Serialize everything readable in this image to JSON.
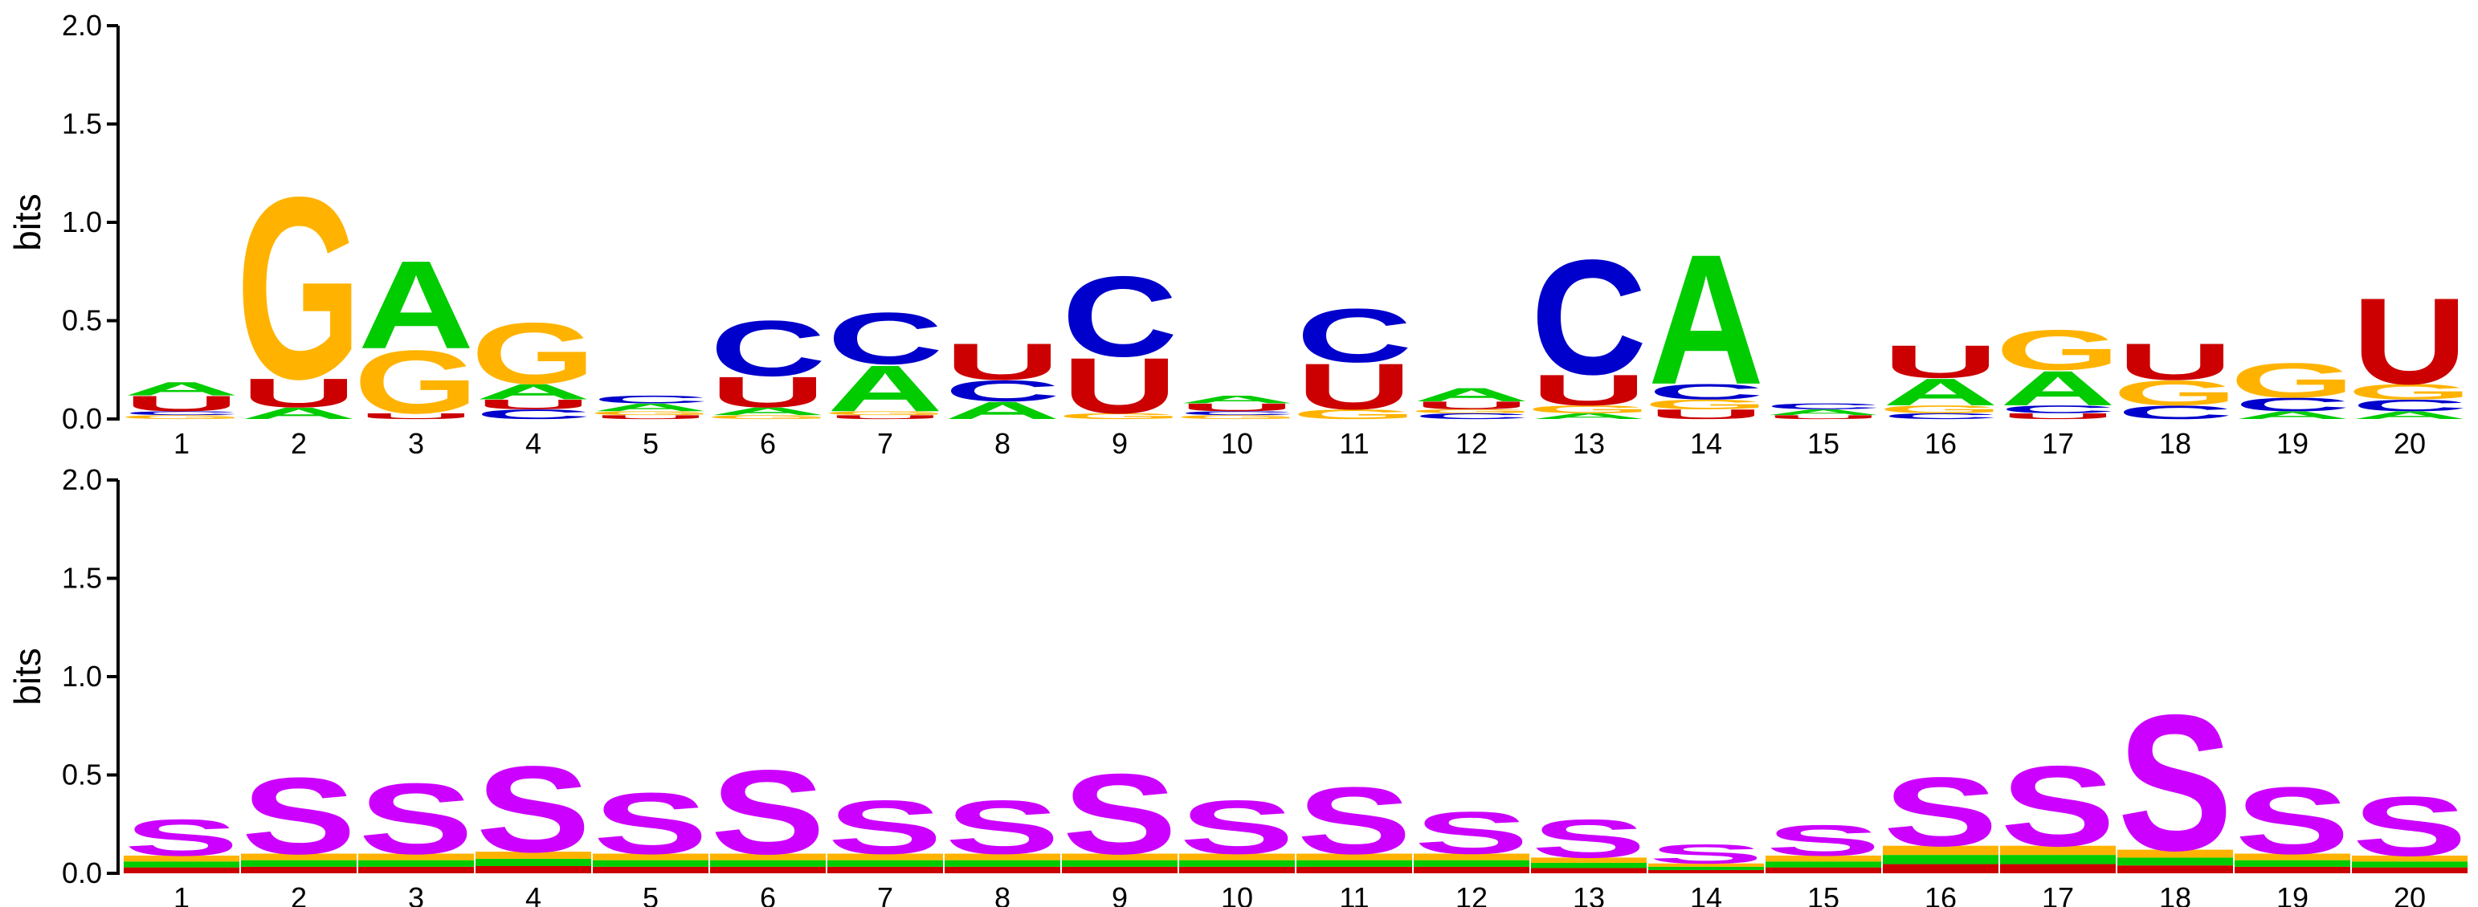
{
  "colors": {
    "A": "#00cc00",
    "C": "#0000cc",
    "G": "#ffb300",
    "U": "#cc0000",
    "S": "#cc00ff",
    "other_structure": [
      "#cc0000",
      "#00cc00",
      "#ffb300"
    ]
  },
  "chart_data": [
    {
      "type": "sequence_logo",
      "ylabel": "bits",
      "ylim": [
        0,
        2.0
      ],
      "yticks": [
        "0.0",
        "0.5",
        "1.0",
        "1.5",
        "2.0"
      ],
      "positions": [
        "1",
        "2",
        "3",
        "4",
        "5",
        "6",
        "7",
        "8",
        "9",
        "10",
        "11",
        "12",
        "13",
        "14",
        "15",
        "16",
        "17",
        "18",
        "19",
        "20"
      ],
      "stacks": [
        [
          {
            "l": "G",
            "h": 0.02
          },
          {
            "l": "C",
            "h": 0.02
          },
          {
            "l": "U",
            "h": 0.08
          },
          {
            "l": "A",
            "h": 0.07
          }
        ],
        [
          {
            "l": "A",
            "h": 0.06
          },
          {
            "l": "U",
            "h": 0.15
          },
          {
            "l": "G",
            "h": 0.95
          }
        ],
        [
          {
            "l": "U",
            "h": 0.03
          },
          {
            "l": "G",
            "h": 0.33
          },
          {
            "l": "A",
            "h": 0.46
          }
        ],
        [
          {
            "l": "C",
            "h": 0.05
          },
          {
            "l": "U",
            "h": 0.05
          },
          {
            "l": "A",
            "h": 0.08
          },
          {
            "l": "G",
            "h": 0.32
          }
        ],
        [
          {
            "l": "U",
            "h": 0.02
          },
          {
            "l": "G",
            "h": 0.02
          },
          {
            "l": "A",
            "h": 0.04
          },
          {
            "l": "C",
            "h": 0.04
          }
        ],
        [
          {
            "l": "G",
            "h": 0.02
          },
          {
            "l": "A",
            "h": 0.04
          },
          {
            "l": "U",
            "h": 0.16
          },
          {
            "l": "C",
            "h": 0.29
          }
        ],
        [
          {
            "l": "U",
            "h": 0.02
          },
          {
            "l": "G",
            "h": 0.02
          },
          {
            "l": "A",
            "h": 0.24
          },
          {
            "l": "C",
            "h": 0.27
          }
        ],
        [
          {
            "l": "A",
            "h": 0.09
          },
          {
            "l": "C",
            "h": 0.11
          },
          {
            "l": "U",
            "h": 0.19
          }
        ],
        [
          {
            "l": "G",
            "h": 0.03
          },
          {
            "l": "U",
            "h": 0.29
          },
          {
            "l": "C",
            "h": 0.42
          }
        ],
        [
          {
            "l": "G",
            "h": 0.02
          },
          {
            "l": "C",
            "h": 0.02
          },
          {
            "l": "U",
            "h": 0.04
          },
          {
            "l": "A",
            "h": 0.04
          }
        ],
        [
          {
            "l": "G",
            "h": 0.05
          },
          {
            "l": "U",
            "h": 0.24
          },
          {
            "l": "C",
            "h": 0.28
          }
        ],
        [
          {
            "l": "C",
            "h": 0.03
          },
          {
            "l": "G",
            "h": 0.02
          },
          {
            "l": "U",
            "h": 0.04
          },
          {
            "l": "A",
            "h": 0.07
          }
        ],
        [
          {
            "l": "A",
            "h": 0.03
          },
          {
            "l": "G",
            "h": 0.04
          },
          {
            "l": "U",
            "h": 0.16
          },
          {
            "l": "C",
            "h": 0.6
          }
        ],
        [
          {
            "l": "U",
            "h": 0.05
          },
          {
            "l": "G",
            "h": 0.05
          },
          {
            "l": "C",
            "h": 0.08
          },
          {
            "l": "A",
            "h": 0.68
          }
        ],
        [
          {
            "l": "U",
            "h": 0.02
          },
          {
            "l": "A",
            "h": 0.03
          },
          {
            "l": "C",
            "h": 0.03
          }
        ],
        [
          {
            "l": "C",
            "h": 0.03
          },
          {
            "l": "G",
            "h": 0.04
          },
          {
            "l": "A",
            "h": 0.14
          },
          {
            "l": "U",
            "h": 0.17
          }
        ],
        [
          {
            "l": "U",
            "h": 0.03
          },
          {
            "l": "C",
            "h": 0.04
          },
          {
            "l": "A",
            "h": 0.18
          },
          {
            "l": "G",
            "h": 0.21
          }
        ],
        [
          {
            "l": "C",
            "h": 0.07
          },
          {
            "l": "G",
            "h": 0.13
          },
          {
            "l": "U",
            "h": 0.19
          }
        ],
        [
          {
            "l": "A",
            "h": 0.04
          },
          {
            "l": "C",
            "h": 0.07
          },
          {
            "l": "G",
            "h": 0.18
          }
        ],
        [
          {
            "l": "A",
            "h": 0.04
          },
          {
            "l": "C",
            "h": 0.06
          },
          {
            "l": "G",
            "h": 0.08
          },
          {
            "l": "U",
            "h": 0.45
          }
        ]
      ]
    },
    {
      "type": "sequence_logo",
      "ylabel": "bits",
      "ylim": [
        0,
        2.0
      ],
      "yticks": [
        "0.0",
        "0.5",
        "1.0",
        "1.5",
        "2.0"
      ],
      "positions": [
        "1",
        "2",
        "3",
        "4",
        "5",
        "6",
        "7",
        "8",
        "9",
        "10",
        "11",
        "12",
        "13",
        "14",
        "15",
        "16",
        "17",
        "18",
        "19",
        "20"
      ],
      "stacks": [
        [
          {
            "l": "other",
            "h": 0.09
          },
          {
            "l": "S",
            "h": 0.19
          }
        ],
        [
          {
            "l": "other",
            "h": 0.1
          },
          {
            "l": "S",
            "h": 0.4
          }
        ],
        [
          {
            "l": "other",
            "h": 0.1
          },
          {
            "l": "S",
            "h": 0.37
          }
        ],
        [
          {
            "l": "other",
            "h": 0.11
          },
          {
            "l": "S",
            "h": 0.45
          }
        ],
        [
          {
            "l": "other",
            "h": 0.1
          },
          {
            "l": "S",
            "h": 0.32
          }
        ],
        [
          {
            "l": "other",
            "h": 0.1
          },
          {
            "l": "S",
            "h": 0.44
          }
        ],
        [
          {
            "l": "other",
            "h": 0.1
          },
          {
            "l": "S",
            "h": 0.28
          }
        ],
        [
          {
            "l": "other",
            "h": 0.1
          },
          {
            "l": "S",
            "h": 0.28
          }
        ],
        [
          {
            "l": "other",
            "h": 0.1
          },
          {
            "l": "S",
            "h": 0.42
          }
        ],
        [
          {
            "l": "other",
            "h": 0.1
          },
          {
            "l": "S",
            "h": 0.28
          }
        ],
        [
          {
            "l": "other",
            "h": 0.1
          },
          {
            "l": "S",
            "h": 0.35
          }
        ],
        [
          {
            "l": "other",
            "h": 0.1
          },
          {
            "l": "S",
            "h": 0.22
          }
        ],
        [
          {
            "l": "other",
            "h": 0.08
          },
          {
            "l": "S",
            "h": 0.2
          }
        ],
        [
          {
            "l": "other",
            "h": 0.05
          },
          {
            "l": "S",
            "h": 0.1
          }
        ],
        [
          {
            "l": "other",
            "h": 0.09
          },
          {
            "l": "S",
            "h": 0.16
          }
        ],
        [
          {
            "l": "other",
            "h": 0.14
          },
          {
            "l": "S",
            "h": 0.36
          }
        ],
        [
          {
            "l": "other",
            "h": 0.14
          },
          {
            "l": "S",
            "h": 0.42
          }
        ],
        [
          {
            "l": "other",
            "h": 0.12
          },
          {
            "l": "S",
            "h": 0.71
          }
        ],
        [
          {
            "l": "other",
            "h": 0.1
          },
          {
            "l": "S",
            "h": 0.35
          }
        ],
        [
          {
            "l": "other",
            "h": 0.09
          },
          {
            "l": "S",
            "h": 0.31
          }
        ]
      ]
    }
  ]
}
